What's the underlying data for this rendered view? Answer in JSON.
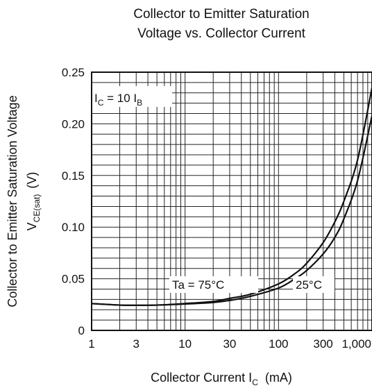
{
  "chart_data": {
    "type": "line",
    "title": [
      "Collector to Emitter Saturation",
      "Voltage vs. Collector Current"
    ],
    "xlabel": {
      "main": "Collector Current  I",
      "sub": "C",
      "unit": "(mA)"
    },
    "ylabel": {
      "line1": "Collector to Emitter Saturation Voltage",
      "line2_main": "V",
      "line2_sub": "CE(sat)",
      "line2_unit": "(V)"
    },
    "x_scale": "log",
    "xlim": [
      1,
      1000
    ],
    "ylim": [
      0,
      0.25
    ],
    "x_ticks": [
      1,
      3,
      10,
      30,
      100,
      300,
      1000
    ],
    "x_tick_labels": [
      "1",
      "3",
      "10",
      "30",
      "100",
      "300",
      "1,000"
    ],
    "y_ticks": [
      0,
      0.05,
      0.1,
      0.15,
      0.2,
      0.25
    ],
    "y_tick_labels": [
      "0",
      "0.05",
      "0.10",
      "0.15",
      "0.20",
      "0.25"
    ],
    "grid": true,
    "condition": {
      "main": "I",
      "sub1": "C",
      "mid": " = 10 I",
      "sub2": "B"
    },
    "series": [
      {
        "name": "Ta = 75°C",
        "x": [
          1,
          2,
          3,
          5,
          10,
          20,
          30,
          50,
          100,
          150,
          200,
          300,
          400,
          500,
          700,
          1000
        ],
        "y": [
          0.026,
          0.0245,
          0.0243,
          0.0245,
          0.026,
          0.028,
          0.031,
          0.035,
          0.045,
          0.055,
          0.065,
          0.085,
          0.105,
          0.125,
          0.165,
          0.235
        ]
      },
      {
        "name": "25°C",
        "x": [
          1,
          2,
          3,
          5,
          10,
          20,
          30,
          50,
          100,
          150,
          200,
          300,
          400,
          500,
          700,
          1000
        ],
        "y": [
          0.026,
          0.0245,
          0.0243,
          0.0245,
          0.0255,
          0.027,
          0.029,
          0.033,
          0.041,
          0.05,
          0.058,
          0.074,
          0.09,
          0.108,
          0.145,
          0.208
        ]
      }
    ]
  }
}
